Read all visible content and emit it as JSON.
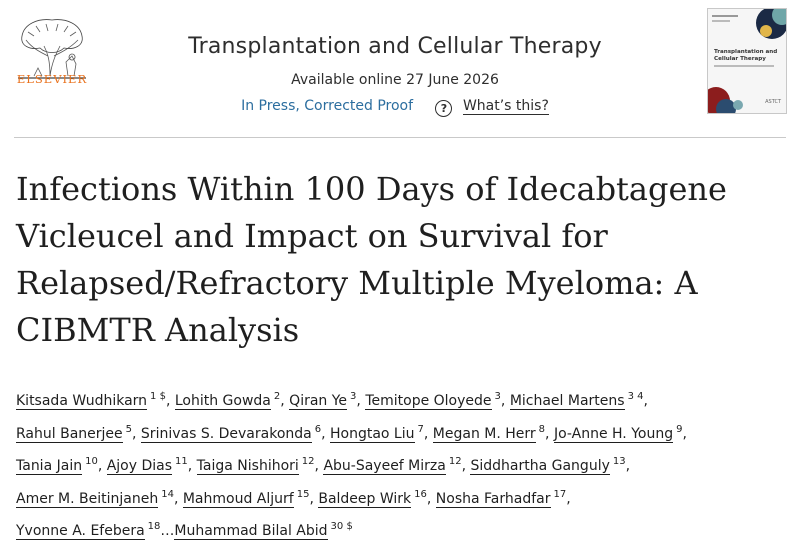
{
  "publisher": {
    "name": "ELSEVIER",
    "logo_icon": "elsevier-tree-icon"
  },
  "journal": {
    "title": "Transplantation and Cellular Therapy",
    "available": "Available online 27 June 2026",
    "status": "In Press, Corrected Proof",
    "help_label": "What’s this?",
    "cover_title": "Transplantation and Cellular Therapy",
    "cover_brand": "ASTCT"
  },
  "article": {
    "title_lines": [
      "Infections Within 100 Days of Idecabtagene",
      "Vicleucel and Impact on Survival for",
      "Relapsed/Refractory Multiple Myeloma: A",
      "CIBMTR Analysis"
    ]
  },
  "authors": [
    {
      "name": "Kitsada Wudhikarn",
      "sup": "1 $",
      "sep": ","
    },
    {
      "name": "Lohith Gowda",
      "sup": "2",
      "sep": ","
    },
    {
      "name": "Qiran Ye",
      "sup": "3",
      "sep": ","
    },
    {
      "name": "Temitope Oloyede",
      "sup": "3",
      "sep": ","
    },
    {
      "name": "Michael Martens",
      "sup": "3 4",
      "sep": ","
    },
    {
      "name": "Rahul Banerjee",
      "sup": "5",
      "sep": ","
    },
    {
      "name": "Srinivas S. Devarakonda",
      "sup": "6",
      "sep": ","
    },
    {
      "name": "Hongtao Liu",
      "sup": "7",
      "sep": ","
    },
    {
      "name": "Megan M. Herr",
      "sup": "8",
      "sep": ","
    },
    {
      "name": "Jo-Anne H. Young",
      "sup": "9",
      "sep": ","
    },
    {
      "name": "Tania Jain",
      "sup": "10",
      "sep": ","
    },
    {
      "name": "Ajoy Dias",
      "sup": "11",
      "sep": ","
    },
    {
      "name": "Taiga Nishihori",
      "sup": "12",
      "sep": ","
    },
    {
      "name": "Abu-Sayeef Mirza",
      "sup": "12",
      "sep": ","
    },
    {
      "name": "Siddhartha Ganguly",
      "sup": "13",
      "sep": ","
    },
    {
      "name": "Amer M. Beitinjaneh",
      "sup": "14",
      "sep": ","
    },
    {
      "name": "Mahmoud Aljurf",
      "sup": "15",
      "sep": ","
    },
    {
      "name": "Baldeep Wirk",
      "sup": "16",
      "sep": ","
    },
    {
      "name": "Nosha Farhadfar",
      "sup": "17",
      "sep": ","
    },
    {
      "name": "Yvonne A. Efebera",
      "sup": "18",
      "sep": "…"
    },
    {
      "name": "Muhammad Bilal Abid",
      "sup": "30 $",
      "sep": ""
    }
  ]
}
